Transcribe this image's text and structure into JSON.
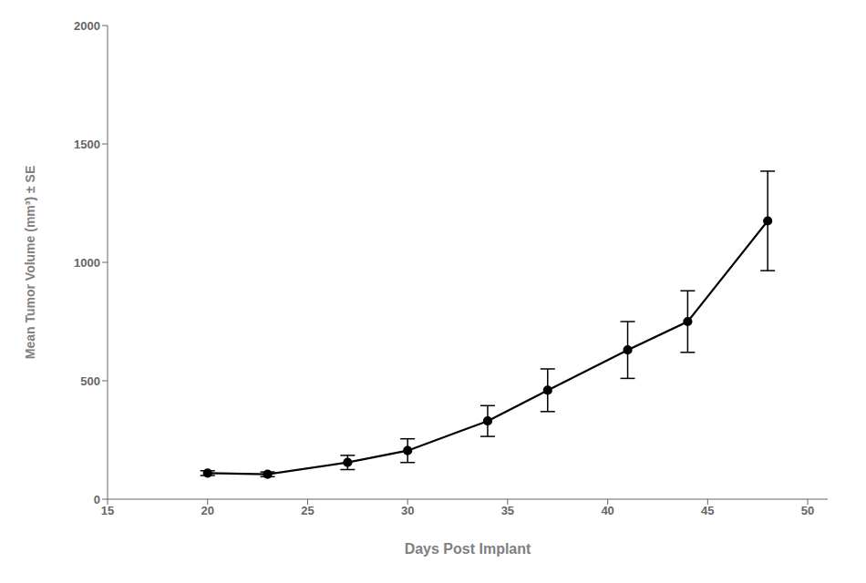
{
  "chart_data": {
    "type": "line",
    "x": [
      20,
      23,
      27,
      30,
      34,
      37,
      41,
      44,
      48
    ],
    "values": [
      110,
      105,
      155,
      205,
      330,
      460,
      630,
      750,
      1175
    ],
    "yerr": [
      10,
      10,
      30,
      50,
      65,
      90,
      120,
      130,
      210
    ],
    "xlabel": "Days Post Implant",
    "ylabel": "Mean Tumor Volume (mm³) ± SE",
    "xlim": [
      15,
      51
    ],
    "ylim": [
      0,
      2000
    ],
    "xticks": [
      15,
      20,
      25,
      30,
      35,
      40,
      45,
      50
    ],
    "yticks": [
      0,
      500,
      1000,
      1500,
      2000
    ],
    "color": "#000000",
    "marker": "circle",
    "grid": false
  }
}
